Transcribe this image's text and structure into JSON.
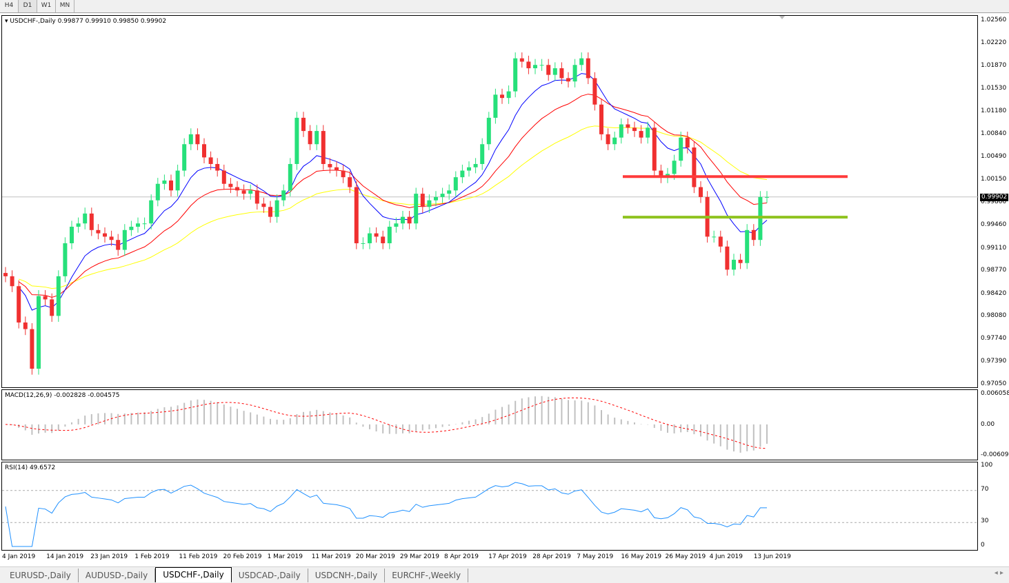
{
  "timeframes": [
    "H4",
    "D1",
    "W1",
    "MN"
  ],
  "active_timeframe": "D1",
  "main": {
    "header": "USDCHF-,Daily  0.99877 0.99910 0.99850 0.99902",
    "current_price": "0.99902",
    "current_value": 0.99902,
    "price_axis": [
      "1.02560",
      "1.02220",
      "1.01870",
      "1.01530",
      "1.01180",
      "1.00840",
      "1.00490",
      "1.00150",
      "0.99800",
      "0.99460",
      "0.99110",
      "0.98770",
      "0.98420",
      "0.98080",
      "0.97740",
      "0.97390",
      "0.97050"
    ],
    "ylim": [
      0.9705,
      1.0256
    ],
    "resistance_line": {
      "price": 1.0021,
      "color": "#ff3b3b"
    },
    "support_line": {
      "price": 0.99595,
      "color": "#8fc31f"
    },
    "colors": {
      "bull": "#26e07a",
      "bear": "#f03030",
      "ma_fast": "#0000ff",
      "ma_mid": "#ff0000",
      "ma_slow": "#ffff00"
    }
  },
  "chart_data": {
    "type": "candlestick",
    "open0": 0.9875,
    "close": [
      0.987,
      0.9855,
      0.98,
      0.979,
      0.973,
      0.984,
      0.9835,
      0.981,
      0.987,
      0.992,
      0.9945,
      0.995,
      0.9965,
      0.994,
      0.9935,
      0.993,
      0.9925,
      0.991,
      0.994,
      0.9945,
      0.995,
      0.995,
      0.9985,
      1.001,
      1.0015,
      1.0,
      1.003,
      1.007,
      1.0085,
      1.007,
      1.005,
      1.004,
      1.003,
      1.001,
      1.0005,
      1.0,
      0.9995,
      1.0,
      0.998,
      0.9975,
      0.996,
      0.9985,
      1.0,
      1.004,
      1.011,
      1.009,
      1.007,
      1.009,
      1.004,
      1.0035,
      1.003,
      1.002,
      1.0005,
      0.992,
      0.992,
      0.9935,
      0.993,
      0.992,
      0.9945,
      0.995,
      0.996,
      0.995,
      0.9995,
      0.9975,
      0.9985,
      0.999,
      0.9995,
      1.0,
      1.002,
      1.003,
      1.0035,
      1.004,
      1.007,
      1.011,
      1.0145,
      1.014,
      1.015,
      1.02,
      1.0195,
      1.0185,
      1.019,
      1.019,
      1.0175,
      1.0185,
      1.017,
      1.0165,
      1.019,
      1.02,
      1.017,
      1.013,
      1.0085,
      1.007,
      1.008,
      1.01,
      1.0095,
      1.009,
      1.008,
      1.0095,
      1.003,
      1.002,
      1.0025,
      1.0045,
      1.008,
      1.0065,
      1.0005,
      0.999,
      0.993,
      0.993,
      0.9915,
      0.988,
      0.9895,
      0.989,
      0.994,
      0.9925,
      0.999,
      0.999
    ]
  },
  "macd": {
    "header": "MACD(12,26,9) -0.002828 -0.004575",
    "axis": [
      "0.006058",
      "0.00",
      "-0.006096"
    ],
    "range": [
      -0.006096,
      0.006058
    ]
  },
  "rsi": {
    "header": "RSI(14) 49.6572",
    "axis": [
      "100",
      "70",
      "30",
      "0"
    ],
    "levels": [
      70,
      30
    ]
  },
  "date_axis": [
    "4 Jan 2019",
    "14 Jan 2019",
    "23 Jan 2019",
    "1 Feb 2019",
    "11 Feb 2019",
    "20 Feb 2019",
    "1 Mar 2019",
    "11 Mar 2019",
    "20 Mar 2019",
    "29 Mar 2019",
    "8 Apr 2019",
    "17 Apr 2019",
    "28 Apr 2019",
    "7 May 2019",
    "16 May 2019",
    "26 May 2019",
    "4 Jun 2019",
    "13 Jun 2019"
  ],
  "tabs": [
    "EURUSD-,Daily",
    "AUDUSD-,Daily",
    "USDCHF-,Daily",
    "USDCAD-,Daily",
    "USDCNH-,Daily",
    "EURCHF-,Weekly"
  ],
  "active_tab": "USDCHF-,Daily"
}
